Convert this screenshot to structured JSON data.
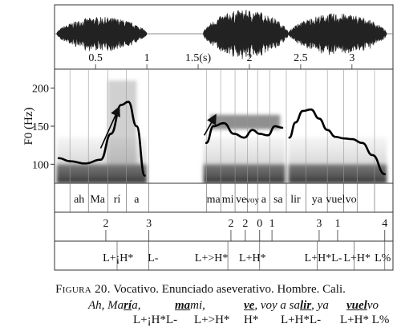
{
  "waveform_time_ticks": [
    "0.5",
    "1",
    "1.5(s)",
    "2",
    "2.5",
    "3"
  ],
  "f0_axis": {
    "label": "F0 (Hz)",
    "ticks": [
      "200",
      "150",
      "100"
    ]
  },
  "chart_data": {
    "type": "line",
    "xlabel": "",
    "ylabel": "F0 (Hz)",
    "x_unit": "s",
    "xlim": [
      0.1,
      3.4
    ],
    "ylim": [
      75,
      225
    ],
    "x_ticks": [
      0.5,
      1,
      1.5,
      2,
      2.5,
      3
    ],
    "y_ticks": [
      100,
      150,
      200
    ],
    "series": [
      {
        "x": [
          0.14,
          0.25,
          0.4,
          0.55,
          0.65,
          0.75,
          0.82,
          0.9,
          0.98
        ],
        "y": [
          108,
          104,
          101,
          106,
          140,
          178,
          182,
          150,
          85
        ]
      },
      {
        "x": [
          1.58,
          1.65,
          1.75,
          1.85,
          1.95,
          2.03,
          2.1,
          2.18,
          2.25,
          2.32
        ],
        "y": [
          128,
          150,
          154,
          140,
          135,
          145,
          140,
          138,
          150,
          148
        ]
      },
      {
        "x": [
          2.39,
          2.45,
          2.52,
          2.6,
          2.68,
          2.76,
          2.84,
          2.92,
          3.0,
          3.1,
          3.2,
          3.32
        ],
        "y": [
          135,
          155,
          170,
          172,
          160,
          145,
          136,
          134,
          133,
          128,
          112,
          87
        ]
      }
    ],
    "arrows": [
      {
        "x1": 0.55,
        "y1": 121,
        "x2": 0.72,
        "y2": 172
      },
      {
        "x1": 1.56,
        "y1": 138,
        "x2": 1.66,
        "y2": 162
      }
    ]
  },
  "syllable_tier": [
    "ah",
    "Ma",
    "rí",
    "a",
    "ma",
    "mi",
    "ve",
    "voy",
    "a",
    "sa",
    "lir",
    "ya",
    "vuel",
    "vo"
  ],
  "break_index_tier": [
    "2",
    "3",
    "2",
    "2",
    "0",
    "1",
    "3",
    "1",
    "4"
  ],
  "tone_tier": [
    "L+¡H*",
    "L-",
    "L+>H*",
    "L+H*",
    "L+H*L-",
    "L+H*",
    "L%"
  ],
  "caption": {
    "figure_label": "Figura 20.",
    "text": "Vocativo. Enunciado aseverativo. Hombre. Cali."
  },
  "example": {
    "pieces": [
      {
        "text": "Ah, Ma",
        "u": false
      },
      {
        "text": "rí",
        "u": true
      },
      {
        "text": "a,",
        "u": false
      },
      {
        "text": "ma",
        "u": true
      },
      {
        "text": "mi,",
        "u": false
      },
      {
        "text": "ve",
        "u": true
      },
      {
        "text": ", voy a sa",
        "u": false
      },
      {
        "text": "lir",
        "u": true
      },
      {
        "text": ", ya",
        "u": false
      },
      {
        "text": "vuel",
        "u": true
      },
      {
        "text": "vo",
        "u": false
      }
    ],
    "labels": [
      "L+¡H*L-",
      "L+>H*",
      "H*",
      "L+H*L-",
      "L+H* L%"
    ]
  }
}
